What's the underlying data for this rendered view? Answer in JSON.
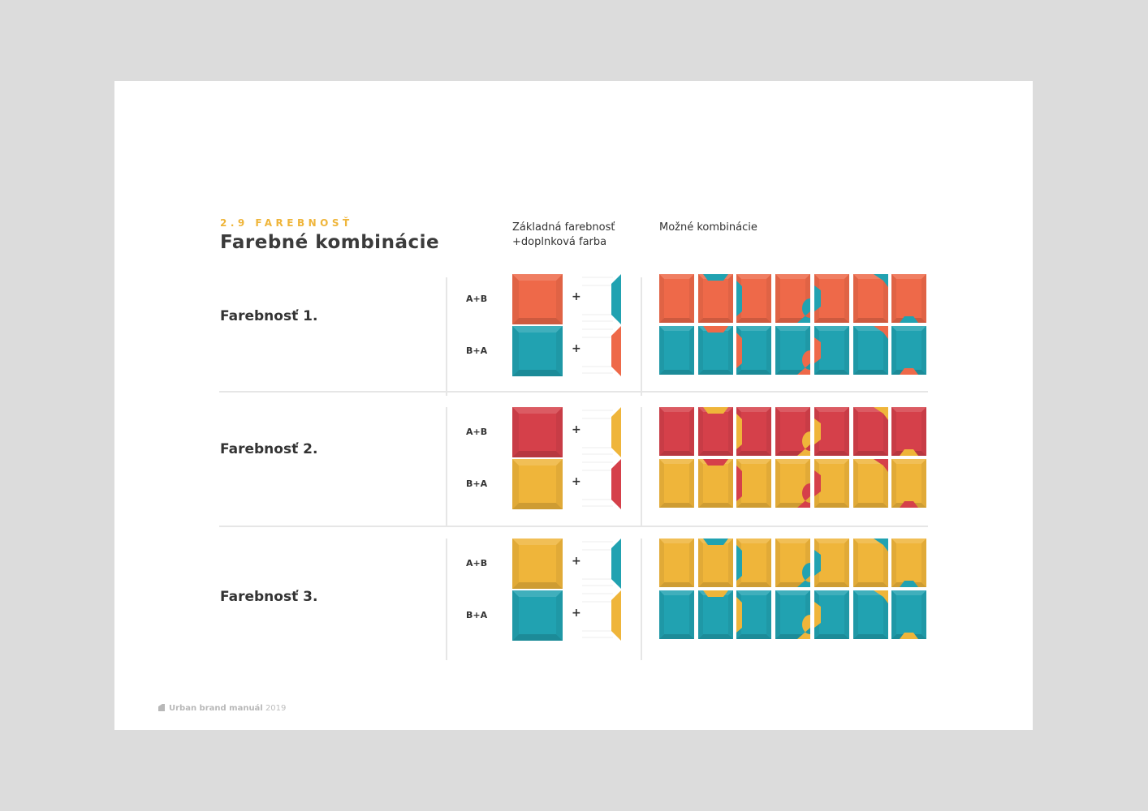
{
  "header": {
    "kicker": "2.9 FAREBNOSŤ",
    "title": "Farebné kombinácie"
  },
  "columns": {
    "base_line1": "Základná farebnosť",
    "base_line2": "+doplnková farba",
    "combos": "Možné kombinácie"
  },
  "plus_sign": "+",
  "rows": [
    {
      "label": "Farebnosť 1.",
      "a_color": "#ee6949",
      "b_color": "#21a2b1",
      "combos": [
        {
          "label": "A+B"
        },
        {
          "label": "B+A"
        }
      ]
    },
    {
      "label": "Farebnosť 2.",
      "a_color": "#d5404a",
      "b_color": "#efb53a",
      "combos": [
        {
          "label": "A+B"
        },
        {
          "label": "B+A"
        }
      ]
    },
    {
      "label": "Farebnosť 3.",
      "a_color": "#efb53a",
      "b_color": "#21a2b1",
      "combos": [
        {
          "label": "A+B"
        },
        {
          "label": "B+A"
        }
      ]
    }
  ],
  "combination_patterns": [
    "plain",
    "top",
    "side-top",
    "side-bottom",
    "left-tab",
    "top-right",
    "bottom-right"
  ],
  "footer": {
    "brand": "Urban brand manuál",
    "year": "2019"
  }
}
